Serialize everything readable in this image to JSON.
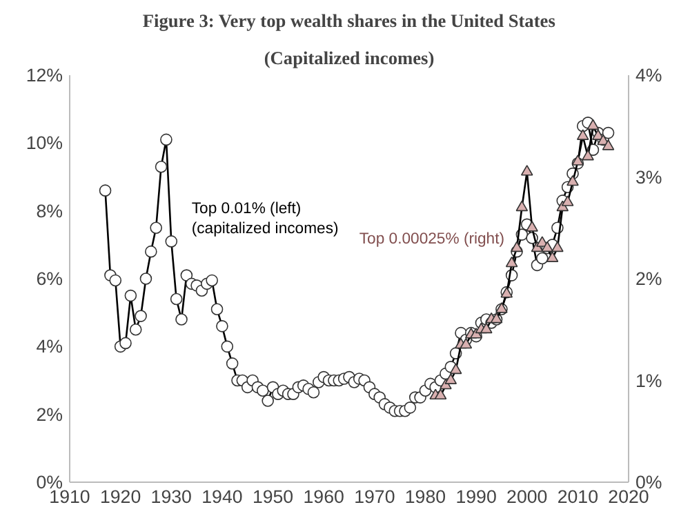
{
  "chart_data": {
    "type": "line",
    "title": "Figure 3: Very top wealth shares in the United States",
    "subtitle": "(Capitalized incomes)",
    "xlim": [
      1910,
      2020
    ],
    "xticks": [
      1910,
      1920,
      1930,
      1940,
      1950,
      1960,
      1970,
      1980,
      1990,
      2000,
      2010,
      2020
    ],
    "ylim": [
      0,
      12
    ],
    "yticks": [
      {
        "value": 0,
        "label": "0%"
      },
      {
        "value": 2,
        "label": "2%"
      },
      {
        "value": 4,
        "label": "4%"
      },
      {
        "value": 6,
        "label": "6%"
      },
      {
        "value": 8,
        "label": "8%"
      },
      {
        "value": 10,
        "label": "10%"
      },
      {
        "value": 12,
        "label": "12%"
      }
    ],
    "y2lim": [
      0,
      4
    ],
    "y2ticks": [
      {
        "value": 0,
        "label": "0%"
      },
      {
        "value": 1,
        "label": "1%"
      },
      {
        "value": 2,
        "label": "2%"
      },
      {
        "value": 3,
        "label": "3%"
      },
      {
        "value": 4,
        "label": "4%"
      }
    ],
    "grid": false,
    "series": [
      {
        "name": "Top 0.01% (left)\n(capitalized incomes)",
        "color": "#ffffff",
        "marker": "circle",
        "x": [
          1917,
          1918,
          1919,
          1920,
          1921,
          1922,
          1923,
          1924,
          1925,
          1926,
          1927,
          1928,
          1929,
          1930,
          1931,
          1932,
          1933,
          1934,
          1935,
          1936,
          1937,
          1938,
          1939,
          1940,
          1941,
          1942,
          1943,
          1944,
          1945,
          1946,
          1947,
          1948,
          1949,
          1950,
          1951,
          1952,
          1953,
          1954,
          1955,
          1956,
          1957,
          1958,
          1959,
          1960,
          1961,
          1962,
          1963,
          1964,
          1965,
          1966,
          1967,
          1968,
          1969,
          1970,
          1971,
          1972,
          1973,
          1974,
          1975,
          1976,
          1977,
          1978,
          1979,
          1980,
          1981,
          1982,
          1983,
          1984,
          1985,
          1986,
          1987,
          1988,
          1989,
          1990,
          1991,
          1992,
          1993,
          1994,
          1995,
          1996,
          1997,
          1998,
          1999,
          2000,
          2001,
          2002,
          2003,
          2004,
          2005,
          2006,
          2007,
          2008,
          2009,
          2010,
          2011,
          2012,
          2013,
          2014,
          2015,
          2016
        ],
        "values": [
          8.6,
          6.1,
          5.95,
          4.0,
          4.1,
          5.5,
          4.5,
          4.9,
          6.0,
          6.8,
          7.5,
          9.3,
          10.1,
          7.1,
          5.4,
          4.8,
          6.1,
          5.85,
          5.8,
          5.65,
          5.85,
          5.95,
          5.1,
          4.6,
          4.0,
          3.5,
          3.0,
          3.0,
          2.8,
          3.0,
          2.8,
          2.7,
          2.4,
          2.8,
          2.6,
          2.7,
          2.6,
          2.6,
          2.8,
          2.85,
          2.75,
          2.65,
          2.95,
          3.1,
          3.0,
          3.0,
          3.0,
          3.05,
          3.1,
          2.95,
          3.05,
          3.0,
          2.8,
          2.6,
          2.5,
          2.3,
          2.2,
          2.1,
          2.1,
          2.1,
          2.2,
          2.5,
          2.5,
          2.7,
          2.9,
          2.8,
          3.0,
          3.2,
          3.4,
          3.8,
          4.4,
          4.2,
          4.4,
          4.3,
          4.7,
          4.8,
          4.7,
          4.8,
          5.1,
          5.6,
          6.1,
          6.8,
          7.3,
          7.6,
          7.2,
          6.4,
          6.6,
          6.9,
          7.0,
          7.5,
          8.3,
          8.7,
          9.1,
          9.4,
          10.5,
          10.6,
          9.8,
          10.3,
          10.1,
          10.3
        ]
      },
      {
        "name": "Top 0.00025% (right)",
        "color": "#d9b0b0",
        "marker": "triangle",
        "axis": "y2",
        "x": [
          1982,
          1983,
          1984,
          1985,
          1986,
          1987,
          1988,
          1989,
          1990,
          1991,
          1992,
          1993,
          1994,
          1995,
          1996,
          1997,
          1998,
          1999,
          2000,
          2001,
          2002,
          2003,
          2004,
          2005,
          2006,
          2007,
          2008,
          2009,
          2010,
          2011,
          2012,
          2013,
          2014,
          2015,
          2016
        ],
        "values": [
          0.85,
          0.85,
          0.95,
          1.0,
          1.1,
          1.35,
          1.35,
          1.45,
          1.45,
          1.5,
          1.5,
          1.6,
          1.6,
          1.7,
          1.85,
          2.15,
          2.3,
          2.7,
          3.05,
          2.5,
          2.3,
          2.35,
          2.3,
          2.2,
          2.3,
          2.7,
          2.75,
          2.95,
          3.15,
          3.4,
          3.2,
          3.5,
          3.4,
          3.35,
          3.3
        ]
      }
    ]
  }
}
